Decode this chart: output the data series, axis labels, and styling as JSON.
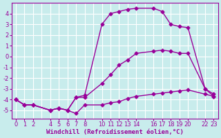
{
  "background_color": "#c8ecec",
  "grid_color": "#ffffff",
  "line_color": "#990099",
  "marker": "D",
  "markersize": 2.5,
  "linewidth": 1.0,
  "xlabel": "Windchill (Refroidissement éolien,°C)",
  "xlabel_fontsize": 6.5,
  "ylabel_fontsize": 6.5,
  "tick_fontsize": 6,
  "ylim": [
    -5.8,
    5.0
  ],
  "yticks": [
    -5,
    -4,
    -3,
    -2,
    -1,
    0,
    1,
    2,
    3,
    4
  ],
  "xlim": [
    -0.5,
    23.5
  ],
  "xtick_positions": [
    0,
    1,
    2,
    4,
    5,
    6,
    7,
    8,
    10,
    11,
    12,
    13,
    14,
    16,
    17,
    18,
    19,
    20,
    22,
    23
  ],
  "xtick_labels": [
    "0",
    "1",
    "2",
    "4",
    "5",
    "6",
    "7",
    "8",
    "10",
    "11",
    "12",
    "13",
    "14",
    "16",
    "17",
    "18",
    "19",
    "20",
    "22",
    "23"
  ],
  "curve1_x": [
    0,
    1,
    2,
    4,
    5,
    6,
    7,
    8,
    10,
    11,
    12,
    13,
    14,
    16,
    17,
    18,
    19,
    20,
    22,
    23
  ],
  "curve1_y": [
    -4.0,
    -4.5,
    -4.5,
    -5.0,
    -4.8,
    -5.0,
    -5.3,
    -4.5,
    -4.5,
    -4.3,
    -4.2,
    -3.9,
    -3.7,
    -3.5,
    -3.4,
    -3.3,
    -3.2,
    -3.1,
    -3.5,
    -3.7
  ],
  "curve2_x": [
    0,
    1,
    2,
    4,
    5,
    6,
    7,
    8,
    10,
    11,
    12,
    13,
    14,
    16,
    17,
    18,
    19,
    20,
    22,
    23
  ],
  "curve2_y": [
    -4.0,
    -4.5,
    -4.5,
    -5.0,
    -4.8,
    -5.0,
    -3.8,
    -3.8,
    -2.5,
    -1.7,
    -0.8,
    -0.3,
    0.3,
    0.5,
    0.6,
    0.5,
    0.3,
    0.3,
    -3.0,
    -3.5
  ],
  "curve3_x": [
    0,
    1,
    2,
    4,
    5,
    6,
    7,
    8,
    10,
    11,
    12,
    13,
    14,
    16,
    17,
    18,
    19,
    20,
    22,
    23
  ],
  "curve3_y": [
    -4.0,
    -4.5,
    -4.5,
    -5.0,
    -4.8,
    -5.0,
    -3.8,
    -3.6,
    3.0,
    4.0,
    4.2,
    4.4,
    4.5,
    4.5,
    4.2,
    3.0,
    2.8,
    2.7,
    -3.0,
    -3.7
  ]
}
